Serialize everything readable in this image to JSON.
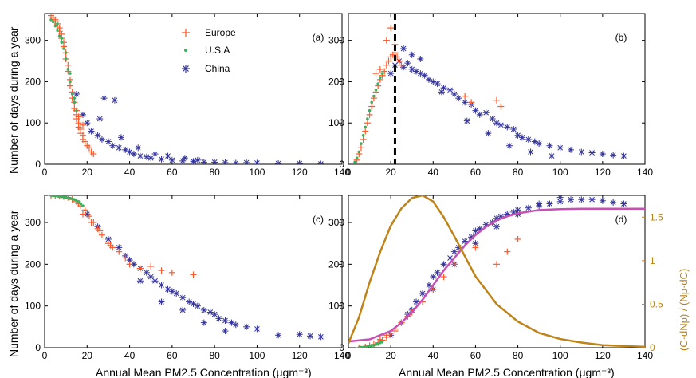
{
  "colors": {
    "europe": "#ff5a2a",
    "usa": "#3cb05a",
    "china": "#33339a",
    "fit": "#c84fb5",
    "deriv": "#bf8418"
  },
  "shared": {
    "xlabel": "Annual Mean PM2.5 Concentration (μgm⁻³)",
    "ylabel": "Number of days during a year",
    "x_ticks": [
      0,
      20,
      40,
      60,
      80,
      100,
      120,
      140
    ],
    "y_ticks": [
      0,
      100,
      200,
      300
    ]
  },
  "legend": {
    "entries": [
      "Europe",
      "U.S.A",
      "China"
    ],
    "placement": "top-center of panel (a)"
  },
  "chart_data": [
    {
      "type": "scatter",
      "panel": "(a)",
      "xlim": [
        0,
        140
      ],
      "ylim": [
        0,
        365
      ],
      "series": [
        {
          "name": "Europe",
          "marker": "plus",
          "x": [
            3,
            4,
            5,
            5,
            6,
            6,
            7,
            7,
            8,
            8,
            9,
            9,
            10,
            10,
            11,
            11,
            12,
            12,
            13,
            13,
            14,
            14,
            15,
            15,
            16,
            16,
            17,
            17,
            18,
            18,
            19,
            20,
            21,
            22,
            23,
            15,
            16,
            18
          ],
          "y": [
            360,
            355,
            350,
            345,
            340,
            335,
            330,
            322,
            315,
            305,
            295,
            285,
            270,
            255,
            240,
            225,
            205,
            190,
            175,
            160,
            150,
            135,
            120,
            110,
            100,
            90,
            85,
            75,
            70,
            60,
            55,
            45,
            40,
            30,
            25,
            130,
            115,
            95
          ]
        },
        {
          "name": "U.S.A",
          "marker": "dot",
          "x": [
            3,
            4,
            5,
            6,
            7,
            8,
            9,
            10,
            11,
            12,
            13,
            14,
            15,
            6,
            8,
            10,
            12,
            14
          ],
          "y": [
            350,
            345,
            335,
            325,
            310,
            295,
            280,
            255,
            230,
            200,
            170,
            150,
            130,
            340,
            305,
            270,
            220,
            160
          ]
        },
        {
          "name": "China",
          "marker": "asterisk",
          "x": [
            15,
            18,
            20,
            22,
            25,
            27,
            30,
            32,
            35,
            38,
            40,
            42,
            45,
            48,
            50,
            55,
            60,
            65,
            70,
            75,
            80,
            85,
            90,
            100,
            110,
            120,
            130,
            28,
            33,
            26,
            36,
            44,
            52,
            58,
            66,
            72,
            95
          ],
          "y": [
            170,
            120,
            100,
            80,
            70,
            60,
            55,
            45,
            40,
            35,
            30,
            25,
            20,
            18,
            15,
            12,
            10,
            8,
            7,
            5,
            5,
            4,
            3,
            3,
            2,
            2,
            1,
            160,
            155,
            110,
            65,
            40,
            25,
            20,
            15,
            10,
            4
          ]
        }
      ]
    },
    {
      "type": "scatter",
      "panel": "(b)",
      "xlim": [
        0,
        140
      ],
      "ylim": [
        0,
        365
      ],
      "vline_x": 22,
      "series": [
        {
          "name": "Europe",
          "marker": "plus",
          "x": [
            4,
            5,
            6,
            7,
            8,
            9,
            10,
            11,
            12,
            13,
            14,
            15,
            16,
            17,
            18,
            19,
            20,
            21,
            22,
            23,
            24,
            18,
            20,
            22,
            15,
            13,
            25,
            55,
            58,
            70,
            72
          ],
          "y": [
            10,
            25,
            40,
            60,
            80,
            100,
            120,
            140,
            160,
            175,
            190,
            205,
            215,
            225,
            240,
            250,
            260,
            265,
            270,
            260,
            250,
            300,
            330,
            290,
            230,
            220,
            240,
            165,
            150,
            155,
            140
          ]
        },
        {
          "name": "U.S.A",
          "marker": "dot",
          "x": [
            3,
            4,
            5,
            6,
            7,
            8,
            9,
            10,
            11,
            12,
            13,
            14,
            15,
            16
          ],
          "y": [
            5,
            15,
            30,
            50,
            70,
            90,
            110,
            130,
            150,
            165,
            180,
            195,
            210,
            220
          ]
        },
        {
          "name": "China",
          "marker": "asterisk",
          "x": [
            20,
            22,
            24,
            26,
            28,
            30,
            32,
            34,
            36,
            38,
            40,
            42,
            45,
            48,
            50,
            52,
            55,
            58,
            60,
            62,
            65,
            68,
            70,
            72,
            75,
            78,
            80,
            82,
            85,
            88,
            90,
            95,
            100,
            105,
            110,
            115,
            120,
            125,
            130,
            26,
            30,
            34,
            44,
            56,
            66,
            76,
            86,
            96
          ],
          "y": [
            220,
            240,
            250,
            235,
            245,
            230,
            225,
            220,
            215,
            205,
            200,
            195,
            185,
            180,
            170,
            160,
            150,
            145,
            130,
            120,
            125,
            110,
            100,
            95,
            90,
            85,
            70,
            65,
            60,
            55,
            50,
            45,
            40,
            35,
            30,
            28,
            25,
            22,
            20,
            280,
            265,
            255,
            175,
            105,
            75,
            45,
            30,
            20
          ]
        }
      ]
    },
    {
      "type": "scatter",
      "panel": "(c)",
      "xlim": [
        0,
        140
      ],
      "ylim": [
        0,
        365
      ],
      "series": [
        {
          "name": "Europe",
          "marker": "plus",
          "x": [
            3,
            5,
            7,
            9,
            11,
            13,
            15,
            17,
            19,
            21,
            23,
            25,
            27,
            30,
            32,
            35,
            38,
            40,
            45,
            50,
            55,
            60,
            70,
            18,
            22,
            26,
            31,
            16
          ],
          "y": [
            365,
            365,
            363,
            362,
            360,
            355,
            350,
            340,
            330,
            315,
            300,
            285,
            270,
            250,
            240,
            230,
            215,
            200,
            190,
            195,
            185,
            180,
            175,
            320,
            300,
            280,
            245,
            345
          ]
        },
        {
          "name": "U.S.A",
          "marker": "dot",
          "x": [
            3,
            4,
            5,
            6,
            7,
            8,
            9,
            10,
            11,
            12,
            13,
            14,
            15,
            16,
            17,
            18
          ],
          "y": [
            365,
            364,
            364,
            363,
            362,
            362,
            361,
            360,
            359,
            358,
            357,
            355,
            352,
            350,
            345,
            340
          ]
        },
        {
          "name": "China",
          "marker": "asterisk",
          "x": [
            20,
            25,
            30,
            35,
            38,
            40,
            42,
            45,
            48,
            50,
            52,
            55,
            58,
            60,
            62,
            65,
            68,
            70,
            72,
            75,
            78,
            80,
            82,
            85,
            88,
            90,
            95,
            100,
            110,
            120,
            125,
            130,
            45,
            55,
            65,
            75,
            85
          ],
          "y": [
            320,
            290,
            260,
            240,
            220,
            210,
            200,
            190,
            180,
            170,
            160,
            150,
            140,
            135,
            130,
            120,
            110,
            105,
            100,
            90,
            85,
            80,
            70,
            65,
            60,
            55,
            50,
            45,
            30,
            32,
            28,
            26,
            160,
            110,
            90,
            60,
            40
          ]
        }
      ]
    },
    {
      "type": "scatter",
      "panel": "(d)",
      "xlim": [
        0,
        140
      ],
      "ylim": [
        0,
        365
      ],
      "y2lim": [
        0,
        1.75
      ],
      "y2label": "(C·dNp) / (Np·dC)",
      "y2_ticks": [
        0,
        0.5,
        1,
        1.5
      ],
      "series": [
        {
          "name": "Europe",
          "marker": "plus",
          "x": [
            5,
            8,
            10,
            12,
            14,
            16,
            18,
            20,
            22,
            25,
            28,
            30,
            35,
            40,
            45,
            50,
            60,
            70,
            75,
            80,
            15,
            18,
            22
          ],
          "y": [
            0,
            2,
            5,
            8,
            12,
            18,
            25,
            35,
            45,
            60,
            75,
            85,
            110,
            140,
            170,
            200,
            240,
            200,
            230,
            260,
            20,
            30,
            40
          ]
        },
        {
          "name": "U.S.A",
          "marker": "dot",
          "x": [
            5,
            6,
            7,
            8,
            9,
            10,
            11,
            12,
            13,
            14,
            15,
            16
          ],
          "y": [
            0,
            1,
            1,
            2,
            3,
            4,
            5,
            6,
            8,
            10,
            12,
            14
          ]
        },
        {
          "name": "China",
          "marker": "asterisk",
          "x": [
            20,
            25,
            28,
            30,
            32,
            35,
            38,
            40,
            42,
            45,
            48,
            50,
            52,
            55,
            58,
            60,
            62,
            65,
            68,
            70,
            72,
            75,
            78,
            80,
            85,
            90,
            95,
            100,
            105,
            110,
            115,
            120,
            125,
            130,
            40,
            50,
            60,
            70,
            80,
            90,
            100
          ],
          "y": [
            30,
            60,
            80,
            90,
            110,
            130,
            150,
            170,
            180,
            200,
            215,
            230,
            240,
            255,
            265,
            280,
            285,
            295,
            300,
            310,
            315,
            320,
            325,
            330,
            335,
            340,
            345,
            350,
            355,
            355,
            355,
            352,
            348,
            345,
            140,
            200,
            250,
            290,
            320,
            345,
            360
          ]
        }
      ],
      "fit_curve": {
        "x": [
          0,
          10,
          20,
          25,
          30,
          35,
          40,
          45,
          50,
          55,
          60,
          65,
          70,
          75,
          80,
          90,
          100,
          110,
          120,
          130,
          140
        ],
        "y": [
          15,
          20,
          40,
          60,
          85,
          115,
          150,
          185,
          215,
          245,
          270,
          290,
          305,
          315,
          322,
          330,
          332,
          333,
          333,
          333,
          333
        ]
      },
      "deriv_curve": {
        "x": [
          0,
          5,
          10,
          15,
          20,
          25,
          30,
          35,
          40,
          45,
          50,
          55,
          60,
          70,
          80,
          90,
          100,
          110,
          120,
          130,
          140
        ],
        "y": [
          0.05,
          0.35,
          0.75,
          1.1,
          1.4,
          1.6,
          1.72,
          1.75,
          1.68,
          1.5,
          1.28,
          1.05,
          0.82,
          0.5,
          0.3,
          0.17,
          0.1,
          0.06,
          0.03,
          0.02,
          0.01
        ]
      }
    }
  ]
}
